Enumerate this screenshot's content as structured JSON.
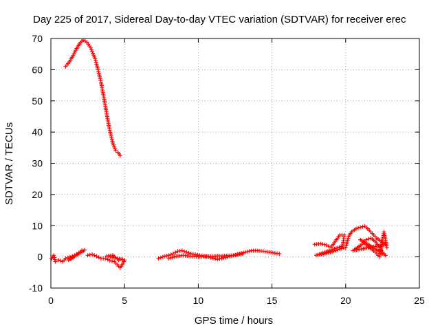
{
  "chart_data": {
    "type": "scatter",
    "title": "Day 225 of 2017, Sidereal Day-to-day VTEC variation (SDTVAR) for receiver erec",
    "xlabel": "GPS time / hours",
    "ylabel": "SDTVAR / TECUs",
    "xlim": [
      0,
      25
    ],
    "ylim": [
      -10,
      70
    ],
    "xticks": [
      "0",
      "5",
      "10",
      "15",
      "20",
      "25"
    ],
    "yticks": [
      "-10",
      "0",
      "10",
      "20",
      "30",
      "40",
      "50",
      "60",
      "70"
    ],
    "xtick_values": [
      0,
      5,
      10,
      15,
      20,
      25
    ],
    "ytick_values": [
      -10,
      0,
      10,
      20,
      30,
      40,
      50,
      60,
      70
    ],
    "grid": true,
    "marker": "plus",
    "color": "#ff0000",
    "series": [
      {
        "name": "arc-rise-fall",
        "points": [
          [
            1.0,
            61
          ],
          [
            1.25,
            62.5
          ],
          [
            1.5,
            64.5
          ],
          [
            1.75,
            66.8
          ],
          [
            2.0,
            68.7
          ],
          [
            2.2,
            69.5
          ],
          [
            2.45,
            68.8
          ],
          [
            2.7,
            67
          ],
          [
            3.0,
            63.5
          ],
          [
            3.2,
            60
          ],
          [
            3.4,
            56
          ],
          [
            3.6,
            51
          ],
          [
            3.8,
            45.5
          ],
          [
            4.0,
            40.5
          ],
          [
            4.2,
            36.5
          ],
          [
            4.4,
            34
          ],
          [
            4.55,
            33.5
          ],
          [
            4.7,
            32.5
          ]
        ]
      },
      {
        "name": "early-low",
        "points": [
          [
            0.05,
            -0.5
          ],
          [
            0.2,
            0.5
          ],
          [
            0.3,
            -1.5
          ],
          [
            0.5,
            -1
          ],
          [
            0.8,
            -1.5
          ],
          [
            1.0,
            -0.5
          ],
          [
            1.3,
            0
          ],
          [
            1.6,
            0.5
          ],
          [
            1.9,
            1.3
          ],
          [
            2.1,
            2.0
          ],
          [
            2.3,
            2.2
          ],
          [
            1.2,
            -1.0
          ],
          [
            1.5,
            -0.3
          ]
        ]
      },
      {
        "name": "mid-low",
        "points": [
          [
            2.5,
            0.5
          ],
          [
            2.8,
            0.8
          ],
          [
            3.1,
            0.2
          ],
          [
            3.4,
            -0.5
          ],
          [
            3.7,
            -0.5
          ],
          [
            4.0,
            -1.2
          ],
          [
            4.3,
            -1.5
          ],
          [
            4.5,
            -2.5
          ],
          [
            4.7,
            -3.5
          ],
          [
            4.9,
            -2
          ],
          [
            5.0,
            -1
          ],
          [
            3.8,
            0.3
          ],
          [
            4.2,
            0.5
          ],
          [
            4.6,
            -1.0
          ]
        ]
      },
      {
        "name": "daytime-low",
        "points": [
          [
            7.3,
            -0.5
          ],
          [
            7.6,
            0
          ],
          [
            8.0,
            0.5
          ],
          [
            8.3,
            1
          ],
          [
            8.6,
            1.8
          ],
          [
            8.9,
            2
          ],
          [
            9.2,
            1.5
          ],
          [
            9.5,
            1
          ],
          [
            9.8,
            0.8
          ],
          [
            10.1,
            0.5
          ],
          [
            10.4,
            0.3
          ],
          [
            10.7,
            0
          ],
          [
            11.0,
            -0.5
          ],
          [
            11.3,
            -0.8
          ],
          [
            11.6,
            -0.5
          ],
          [
            12.0,
            0
          ],
          [
            12.4,
            0.5
          ],
          [
            12.8,
            1
          ],
          [
            13.2,
            1.5
          ],
          [
            13.6,
            2
          ],
          [
            14.0,
            2
          ],
          [
            14.4,
            1.8
          ],
          [
            14.8,
            1.5
          ],
          [
            15.2,
            1.2
          ],
          [
            15.5,
            1
          ],
          [
            8.0,
            -0.5
          ],
          [
            8.5,
            0.2
          ],
          [
            9.0,
            0.5
          ],
          [
            9.5,
            0.2
          ],
          [
            10.0,
            0
          ],
          [
            12.5,
            0.5
          ],
          [
            13.0,
            1
          ]
        ]
      },
      {
        "name": "evening",
        "points": [
          [
            17.9,
            4
          ],
          [
            18.3,
            4.2
          ],
          [
            18.7,
            3.8
          ],
          [
            19.0,
            3
          ],
          [
            19.3,
            5
          ],
          [
            19.6,
            7
          ],
          [
            19.9,
            7
          ],
          [
            19.8,
            3.5
          ],
          [
            18.0,
            0.5
          ],
          [
            18.6,
            1
          ],
          [
            19.2,
            1.8
          ],
          [
            19.6,
            2.5
          ],
          [
            20.0,
            3
          ],
          [
            20.2,
            6.5
          ],
          [
            20.4,
            8
          ],
          [
            20.7,
            9
          ],
          [
            21.0,
            9.5
          ],
          [
            21.3,
            9.8
          ],
          [
            21.5,
            9
          ],
          [
            21.8,
            7.5
          ],
          [
            22.1,
            6
          ],
          [
            22.4,
            5
          ],
          [
            22.7,
            4
          ],
          [
            20.5,
            2
          ],
          [
            20.8,
            3
          ],
          [
            21.1,
            4
          ],
          [
            21.4,
            5.5
          ],
          [
            21.7,
            6
          ],
          [
            22.0,
            5
          ],
          [
            22.3,
            3
          ],
          [
            22.5,
            1.5
          ],
          [
            22.7,
            0.5
          ],
          [
            21.0,
            5.5
          ],
          [
            21.5,
            3.5
          ],
          [
            22.0,
            1.5
          ],
          [
            22.3,
            0
          ],
          [
            22.6,
            8
          ],
          [
            22.8,
            3
          ]
        ]
      }
    ]
  }
}
